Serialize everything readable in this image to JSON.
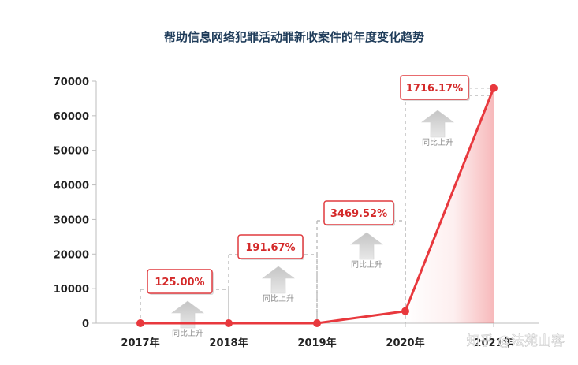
{
  "chart_data": {
    "type": "line",
    "title": "帮助信息网络犯罪活动罪新收案件的年度变化趋势",
    "categories": [
      "2017年",
      "2018年",
      "2019年",
      "2020年",
      "2021年"
    ],
    "series": [
      {
        "values": [
          0,
          0,
          0,
          3500,
          68000
        ]
      }
    ],
    "ylim": [
      0,
      70000
    ],
    "yticks": [
      "0",
      "10000",
      "20000",
      "30000",
      "40000",
      "50000",
      "60000",
      "70000"
    ],
    "grid": false,
    "line_color": "#e8383d",
    "growth_annotations": [
      {
        "label": "125.00%",
        "note": "同比上升"
      },
      {
        "label": "191.67%",
        "note": "同比上升"
      },
      {
        "label": "3469.52%",
        "note": "同比上升"
      },
      {
        "label": "1716.17%",
        "note": "同比上升"
      }
    ]
  },
  "watermark": "知乎 @法苑山客"
}
